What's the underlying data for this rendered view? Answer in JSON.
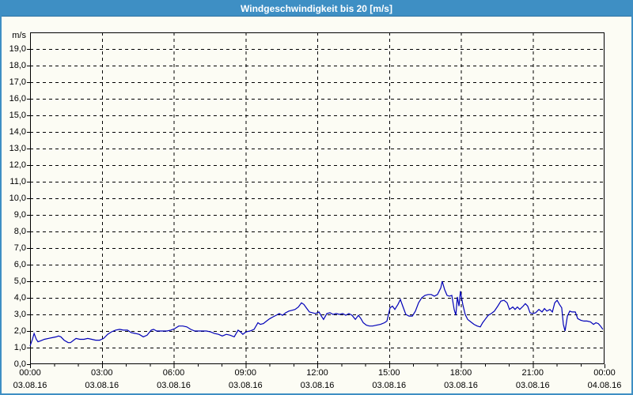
{
  "window": {
    "title": "Windgeschwindigkeit bis 20 [m/s]"
  },
  "colors": {
    "accent": "#3e8fc4",
    "line": "#0000b8",
    "grid": "#000000",
    "background": "#fcfcf4",
    "text": "#000000"
  },
  "chart_data": {
    "type": "line",
    "title": "Windgeschwindigkeit bis 20 [m/s]",
    "unit_label": "m/s",
    "xlim_hours": [
      0,
      24
    ],
    "ylim": [
      0,
      20
    ],
    "y_tick_step": 1,
    "grid": "dashed",
    "legend": "none",
    "y_tick_labels": [
      "0,0",
      "1,0",
      "2,0",
      "3,0",
      "4,0",
      "5,0",
      "6,0",
      "7,0",
      "8,0",
      "9,0",
      "10,0",
      "11,0",
      "12,0",
      "13,0",
      "14,0",
      "15,0",
      "16,0",
      "17,0",
      "18,0",
      "19,0"
    ],
    "x_ticks": [
      {
        "hour": 0,
        "time": "00:00",
        "date": "03.08.16"
      },
      {
        "hour": 3,
        "time": "03:00",
        "date": "03.08.16"
      },
      {
        "hour": 6,
        "time": "06:00",
        "date": "03.08.16"
      },
      {
        "hour": 9,
        "time": "09:00",
        "date": "03.08.16"
      },
      {
        "hour": 12,
        "time": "12:00",
        "date": "03.08.16"
      },
      {
        "hour": 15,
        "time": "15:00",
        "date": "03.08.16"
      },
      {
        "hour": 18,
        "time": "18:00",
        "date": "03.08.16"
      },
      {
        "hour": 21,
        "time": "21:00",
        "date": "03.08.16"
      },
      {
        "hour": 24,
        "time": "00:00",
        "date": "04.08.16"
      }
    ],
    "series": [
      {
        "name": "Windgeschwindigkeit",
        "color": "#0000b8",
        "points": [
          [
            0,
            1.1
          ],
          [
            0.1,
            1.5
          ],
          [
            0.17,
            1.85
          ],
          [
            0.26,
            1.5
          ],
          [
            0.33,
            1.35
          ],
          [
            0.43,
            1.4
          ],
          [
            0.6,
            1.5
          ],
          [
            0.76,
            1.55
          ],
          [
            0.93,
            1.6
          ],
          [
            1.09,
            1.65
          ],
          [
            1.19,
            1.7
          ],
          [
            1.29,
            1.65
          ],
          [
            1.42,
            1.45
          ],
          [
            1.59,
            1.3
          ],
          [
            1.69,
            1.3
          ],
          [
            1.82,
            1.45
          ],
          [
            1.92,
            1.55
          ],
          [
            2.08,
            1.5
          ],
          [
            2.25,
            1.5
          ],
          [
            2.41,
            1.55
          ],
          [
            2.58,
            1.5
          ],
          [
            2.74,
            1.45
          ],
          [
            2.91,
            1.45
          ],
          [
            3.07,
            1.55
          ],
          [
            3.24,
            1.8
          ],
          [
            3.4,
            1.95
          ],
          [
            3.57,
            2.05
          ],
          [
            3.74,
            2.1
          ],
          [
            3.9,
            2.05
          ],
          [
            4.07,
            2.05
          ],
          [
            4.23,
            1.9
          ],
          [
            4.4,
            1.85
          ],
          [
            4.56,
            1.8
          ],
          [
            4.73,
            1.65
          ],
          [
            4.89,
            1.75
          ],
          [
            5.06,
            2.05
          ],
          [
            5.16,
            2.1
          ],
          [
            5.29,
            2.0
          ],
          [
            5.39,
            2.0
          ],
          [
            5.55,
            2.0
          ],
          [
            5.72,
            2.0
          ],
          [
            5.88,
            2.05
          ],
          [
            6.05,
            2.15
          ],
          [
            6.21,
            2.3
          ],
          [
            6.38,
            2.3
          ],
          [
            6.55,
            2.25
          ],
          [
            6.71,
            2.1
          ],
          [
            6.88,
            2.0
          ],
          [
            7.04,
            2.0
          ],
          [
            7.21,
            2.0
          ],
          [
            7.37,
            2.0
          ],
          [
            7.54,
            1.95
          ],
          [
            7.7,
            1.85
          ],
          [
            7.87,
            1.8
          ],
          [
            8.03,
            1.7
          ],
          [
            8.2,
            1.8
          ],
          [
            8.36,
            1.75
          ],
          [
            8.53,
            1.65
          ],
          [
            8.69,
            2.05
          ],
          [
            8.79,
            1.95
          ],
          [
            8.89,
            1.8
          ],
          [
            9.02,
            1.95
          ],
          [
            9.19,
            2.0
          ],
          [
            9.36,
            2.1
          ],
          [
            9.52,
            2.5
          ],
          [
            9.62,
            2.4
          ],
          [
            9.75,
            2.45
          ],
          [
            9.88,
            2.6
          ],
          [
            10.02,
            2.75
          ],
          [
            10.15,
            2.85
          ],
          [
            10.28,
            2.95
          ],
          [
            10.41,
            3.05
          ],
          [
            10.55,
            2.95
          ],
          [
            10.68,
            3.1
          ],
          [
            10.81,
            3.2
          ],
          [
            10.94,
            3.25
          ],
          [
            11.07,
            3.3
          ],
          [
            11.21,
            3.45
          ],
          [
            11.34,
            3.7
          ],
          [
            11.44,
            3.6
          ],
          [
            11.54,
            3.4
          ],
          [
            11.67,
            3.15
          ],
          [
            11.8,
            3.1
          ],
          [
            11.93,
            3.05
          ],
          [
            12.07,
            3.15
          ],
          [
            12.17,
            2.9
          ],
          [
            12.26,
            2.7
          ],
          [
            12.4,
            3.05
          ],
          [
            12.53,
            3.1
          ],
          [
            12.66,
            3.0
          ],
          [
            12.79,
            3.05
          ],
          [
            12.93,
            3.0
          ],
          [
            13.06,
            3.05
          ],
          [
            13.19,
            2.95
          ],
          [
            13.32,
            3.05
          ],
          [
            13.45,
            2.95
          ],
          [
            13.59,
            2.7
          ],
          [
            13.72,
            2.95
          ],
          [
            13.82,
            2.75
          ],
          [
            13.92,
            2.5
          ],
          [
            14.05,
            2.35
          ],
          [
            14.18,
            2.3
          ],
          [
            14.31,
            2.3
          ],
          [
            14.48,
            2.35
          ],
          [
            14.64,
            2.4
          ],
          [
            14.81,
            2.5
          ],
          [
            14.91,
            2.6
          ],
          [
            15.04,
            3.4
          ],
          [
            15.14,
            3.5
          ],
          [
            15.24,
            3.3
          ],
          [
            15.37,
            3.6
          ],
          [
            15.47,
            3.9
          ],
          [
            15.57,
            3.5
          ],
          [
            15.7,
            3.0
          ],
          [
            15.83,
            2.9
          ],
          [
            15.97,
            2.9
          ],
          [
            16.1,
            3.2
          ],
          [
            16.23,
            3.7
          ],
          [
            16.36,
            4.0
          ],
          [
            16.5,
            4.15
          ],
          [
            16.63,
            4.2
          ],
          [
            16.76,
            4.2
          ],
          [
            16.89,
            4.1
          ],
          [
            17.02,
            4.2
          ],
          [
            17.16,
            4.6
          ],
          [
            17.22,
            5.0
          ],
          [
            17.32,
            4.5
          ],
          [
            17.42,
            4.15
          ],
          [
            17.52,
            4.1
          ],
          [
            17.62,
            4.15
          ],
          [
            17.72,
            3.3
          ],
          [
            17.79,
            2.95
          ],
          [
            17.85,
            4.05
          ],
          [
            17.92,
            3.5
          ],
          [
            17.98,
            4.4
          ],
          [
            18.08,
            3.6
          ],
          [
            18.18,
            3.0
          ],
          [
            18.28,
            2.7
          ],
          [
            18.41,
            2.55
          ],
          [
            18.55,
            2.4
          ],
          [
            18.68,
            2.3
          ],
          [
            18.81,
            2.25
          ],
          [
            18.91,
            2.5
          ],
          [
            19.01,
            2.7
          ],
          [
            19.14,
            2.95
          ],
          [
            19.27,
            3.05
          ],
          [
            19.4,
            3.2
          ],
          [
            19.54,
            3.5
          ],
          [
            19.67,
            3.8
          ],
          [
            19.8,
            3.85
          ],
          [
            19.93,
            3.7
          ],
          [
            20.03,
            3.3
          ],
          [
            20.17,
            3.45
          ],
          [
            20.26,
            3.3
          ],
          [
            20.36,
            3.45
          ],
          [
            20.46,
            3.3
          ],
          [
            20.6,
            3.5
          ],
          [
            20.69,
            3.65
          ],
          [
            20.79,
            3.5
          ],
          [
            20.89,
            3.1
          ],
          [
            20.99,
            3.05
          ],
          [
            21.12,
            3.1
          ],
          [
            21.26,
            3.3
          ],
          [
            21.39,
            3.15
          ],
          [
            21.49,
            3.35
          ],
          [
            21.59,
            3.2
          ],
          [
            21.72,
            3.3
          ],
          [
            21.82,
            3.15
          ],
          [
            21.92,
            3.7
          ],
          [
            22.02,
            3.85
          ],
          [
            22.12,
            3.6
          ],
          [
            22.21,
            3.4
          ],
          [
            22.28,
            2.4
          ],
          [
            22.35,
            2.0
          ],
          [
            22.45,
            2.9
          ],
          [
            22.55,
            3.2
          ],
          [
            22.64,
            3.15
          ],
          [
            22.78,
            3.15
          ],
          [
            22.88,
            2.75
          ],
          [
            23.01,
            2.65
          ],
          [
            23.14,
            2.6
          ],
          [
            23.27,
            2.6
          ],
          [
            23.41,
            2.55
          ],
          [
            23.54,
            2.4
          ],
          [
            23.64,
            2.5
          ],
          [
            23.74,
            2.45
          ],
          [
            23.83,
            2.3
          ],
          [
            23.93,
            2.1
          ]
        ]
      }
    ]
  }
}
